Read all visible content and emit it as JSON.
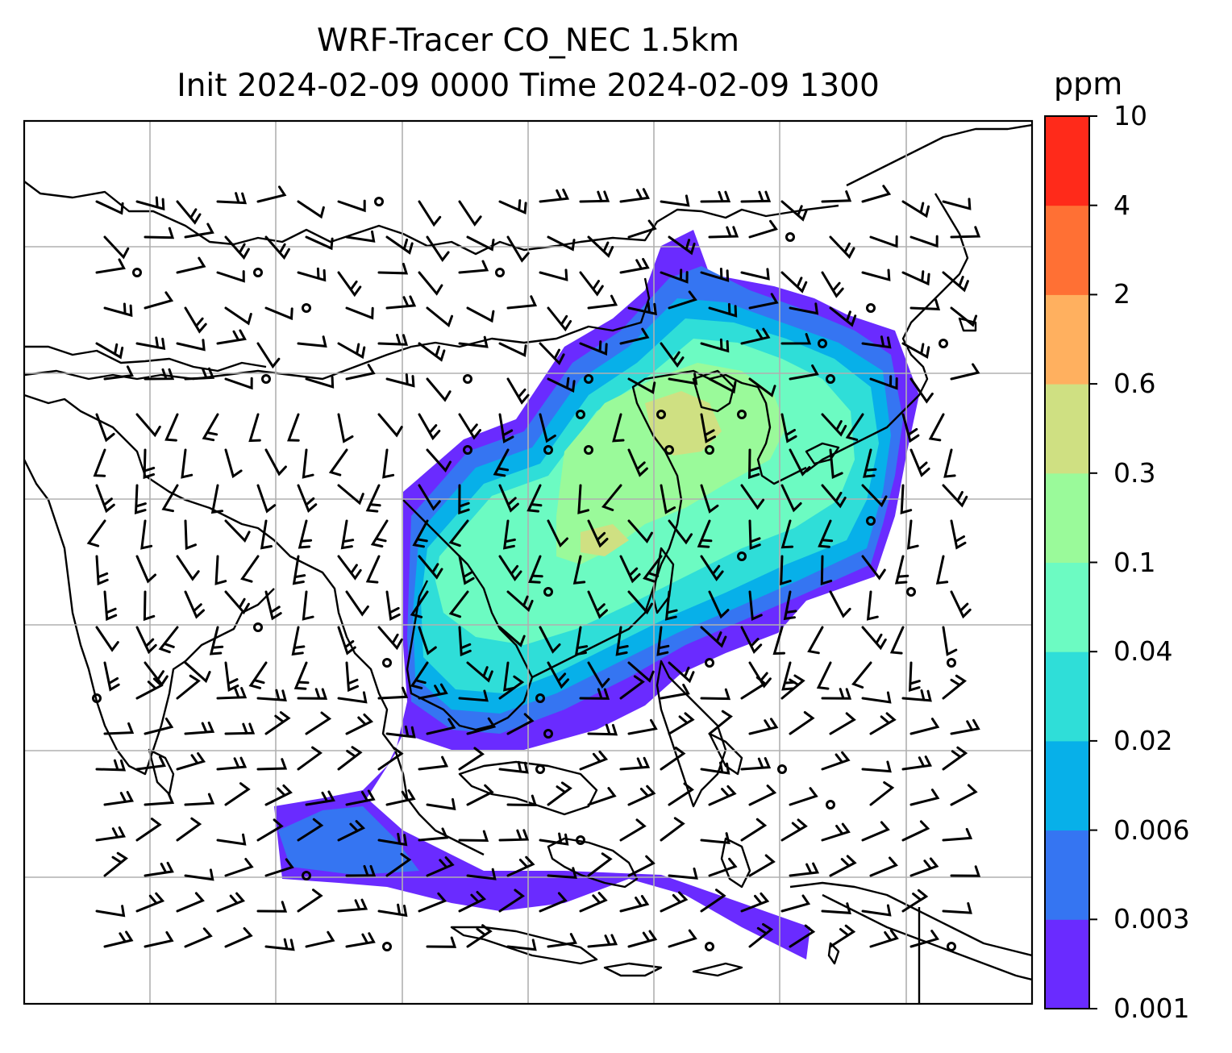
{
  "title": {
    "line1": "WRF-Tracer CO_NEC 1.5km",
    "line2": "Init 2024-02-09 0000 Time 2024-02-09 1300"
  },
  "colorbar": {
    "units": "ppm",
    "ticks": [
      "0.001",
      "0.003",
      "0.006",
      "0.02",
      "0.04",
      "0.1",
      "0.3",
      "0.6",
      "2",
      "4",
      "10"
    ],
    "colors": [
      "#6a2bff",
      "#3575f2",
      "#07b0e9",
      "#2fded8",
      "#6cfbc2",
      "#9afa9a",
      "#cfe082",
      "#ffb05f",
      "#ff7034",
      "#ff2a1a"
    ]
  },
  "map": {
    "gridlines": true,
    "field": "CO_NEC tracer concentration",
    "overlay": "wind barbs",
    "coastline_color": "#000000"
  }
}
